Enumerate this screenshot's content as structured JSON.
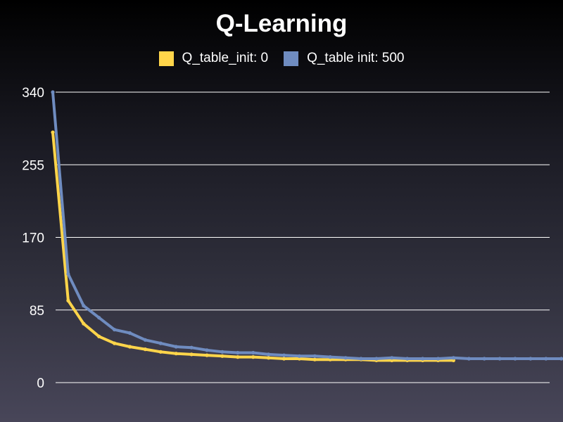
{
  "chart_data": {
    "type": "line",
    "title": "Q-Learning",
    "xlabel": "",
    "ylabel": "",
    "ylim": [
      0,
      340
    ],
    "yticks": [
      0,
      85,
      170,
      255,
      340
    ],
    "grid": true,
    "legend": "top-center",
    "series": [
      {
        "name": "Q_table_init: 0",
        "color": "#ffd54a",
        "values": [
          293,
          96,
          69,
          54,
          46,
          42,
          39,
          36,
          34,
          33,
          32,
          31,
          30,
          30,
          29,
          28,
          28,
          27,
          27,
          27,
          27,
          26,
          26,
          26,
          26,
          26,
          26
        ]
      },
      {
        "name": "Q_table init: 500",
        "color": "#6f8cc0",
        "values": [
          340,
          127,
          90,
          76,
          62,
          58,
          50,
          46,
          42,
          41,
          38,
          36,
          35,
          35,
          33,
          32,
          31,
          31,
          30,
          29,
          28,
          28,
          29,
          28,
          28,
          28,
          29,
          28,
          28,
          28,
          28,
          28,
          28,
          28
        ]
      }
    ]
  }
}
